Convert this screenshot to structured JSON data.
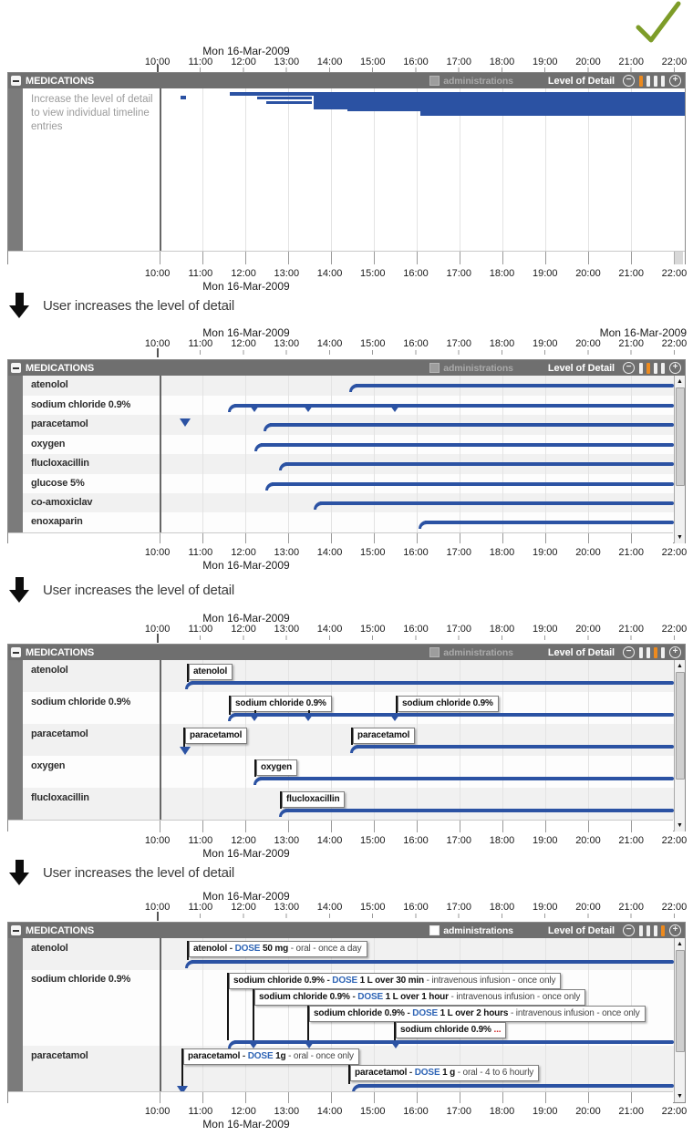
{
  "colors": {
    "bar_blue": "#2b52a3",
    "level_orange": "#ed8a1e",
    "header_grey": "#6f6f6f",
    "check_green": "#7d9c28",
    "ellipsis_red": "#cc2222"
  },
  "axis": {
    "date": "Mon 16-Mar-2009",
    "times": [
      "10:00",
      "11:00",
      "12:00",
      "13:00",
      "14:00",
      "15:00",
      "16:00",
      "17:00",
      "18:00",
      "19:00",
      "20:00",
      "21:00",
      "22:00"
    ]
  },
  "header": {
    "title": "MEDICATIONS",
    "administrations": "administrations",
    "level_of_detail": "Level of Detail",
    "minus": "−",
    "plus": "+"
  },
  "scrollbar": {
    "up": "▲",
    "down": "▼"
  },
  "transition": {
    "text": "User increases the level of detail"
  },
  "panels": [
    {
      "name": "overview",
      "level_of_detail_selected": 1,
      "hint": "Increase the level of detail to view individual timeline entries"
    },
    {
      "name": "drug-level",
      "level_of_detail_selected": 2,
      "rows": [
        {
          "label": "atenolol"
        },
        {
          "label": "sodium chloride 0.9%"
        },
        {
          "label": "paracetamol"
        },
        {
          "label": "oxygen"
        },
        {
          "label": "flucloxacillin"
        },
        {
          "label": "glucose 5%"
        },
        {
          "label": "co-amoxiclav"
        },
        {
          "label": "enoxaparin"
        }
      ]
    },
    {
      "name": "course-level",
      "level_of_detail_selected": 3,
      "rows": [
        {
          "label": "atenolol",
          "boxes": [
            "atenolol"
          ]
        },
        {
          "label": "sodium chloride 0.9%",
          "boxes": [
            "sodium chloride 0.9%",
            "sodium chloride 0.9%"
          ]
        },
        {
          "label": "paracetamol",
          "boxes": [
            "paracetamol",
            "paracetamol"
          ]
        },
        {
          "label": "oxygen",
          "boxes": [
            "oxygen"
          ]
        },
        {
          "label": "flucloxacillin",
          "boxes": [
            "flucloxacillin"
          ]
        }
      ]
    },
    {
      "name": "dose-level",
      "level_of_detail_selected": 4,
      "rows": [
        {
          "label": "atenolol",
          "boxes": [
            {
              "name": "atenolol",
              "sep": " - ",
              "dose_label": "DOSE",
              "dose": " 50 mg ",
              "detail": "- oral - once a day"
            }
          ]
        },
        {
          "label": "sodium chloride 0.9%",
          "boxes": [
            {
              "name": "sodium chloride 0.9%",
              "sep": " - ",
              "dose_label": "DOSE",
              "dose": " 1 L over 30 min ",
              "detail": "- intravenous infusion - once only"
            },
            {
              "name": "sodium chloride 0.9%",
              "sep": " - ",
              "dose_label": "DOSE",
              "dose": " 1 L over 1 hour ",
              "detail": "- intravenous infusion - once only"
            },
            {
              "name": "sodium chloride 0.9%",
              "sep": " - ",
              "dose_label": "DOSE",
              "dose": " 1 L over 2 hours ",
              "detail": "- intravenous infusion - once only"
            },
            {
              "name": "sodium chloride 0.9%",
              "ellipsis": " ..."
            }
          ]
        },
        {
          "label": "paracetamol",
          "boxes": [
            {
              "name": "paracetamol",
              "sep": " - ",
              "dose_label": "DOSE",
              "dose": " 1g ",
              "detail": "- oral - once only"
            },
            {
              "name": "paracetamol",
              "sep": " - ",
              "dose_label": "DOSE",
              "dose": " 1 g ",
              "detail": "- oral - 4 to 6 hourly"
            }
          ]
        }
      ]
    }
  ]
}
